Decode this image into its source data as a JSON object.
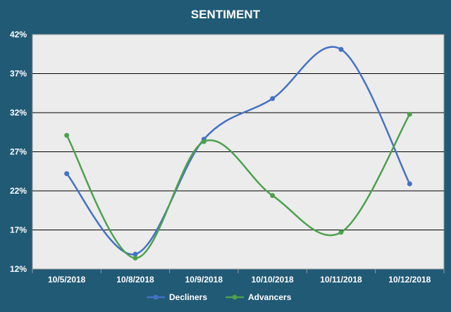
{
  "chart_data": {
    "type": "line",
    "title": "SENTIMENT",
    "xlabel": "",
    "ylabel": "",
    "categories": [
      "10/5/2018",
      "10/8/2018",
      "10/9/2018",
      "10/10/2018",
      "10/11/2018",
      "10/12/2018"
    ],
    "series": [
      {
        "name": "Decliners",
        "color": "#4472c4",
        "values": [
          24.2,
          13.9,
          28.6,
          33.8,
          40.1,
          22.9
        ]
      },
      {
        "name": "Advancers",
        "color": "#4ea04e",
        "values": [
          29.1,
          13.4,
          28.3,
          21.4,
          16.7,
          31.8
        ]
      }
    ],
    "ylim": [
      12,
      42
    ],
    "yticks": [
      12,
      17,
      22,
      27,
      32,
      37,
      42
    ],
    "ytick_labels": [
      "12%",
      "17%",
      "22%",
      "27%",
      "32%",
      "37%",
      "42%"
    ],
    "grid": true,
    "smooth": true,
    "legend": "bottom",
    "background": "#215a75",
    "plot_background": "#ececec"
  }
}
